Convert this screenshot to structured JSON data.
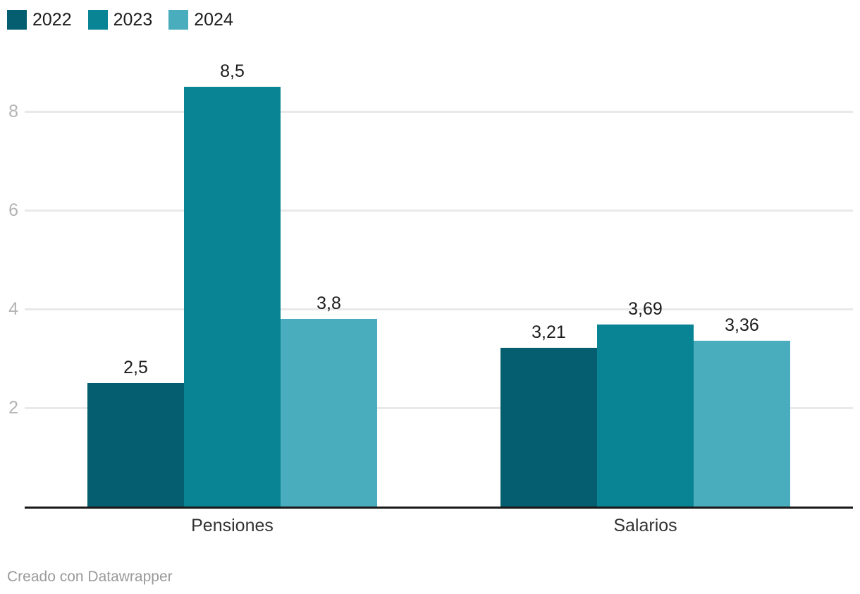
{
  "chart_data": {
    "type": "bar",
    "title": "",
    "categories": [
      "Pensiones",
      "Salarios"
    ],
    "series": [
      {
        "name": "2022",
        "color": "#055e70",
        "values": [
          2.5,
          3.21
        ],
        "value_labels": [
          "2,5",
          "3,21"
        ]
      },
      {
        "name": "2023",
        "color": "#088494",
        "values": [
          8.5,
          3.69
        ],
        "value_labels": [
          "8,5",
          "3,69"
        ]
      },
      {
        "name": "2024",
        "color": "#4aadbd",
        "values": [
          3.8,
          3.36
        ],
        "value_labels": [
          "3,8",
          "3,36"
        ]
      }
    ],
    "xlabel": "",
    "ylabel": "",
    "yticks": [
      2,
      4,
      6,
      8
    ],
    "ytick_labels": [
      "2",
      "4",
      "6",
      "8"
    ],
    "ylim": [
      0,
      9
    ],
    "grid": true,
    "legend_position": "top-left",
    "colors": {
      "gridline": "#e9e9e9",
      "axis_line": "#1a1a1a",
      "tick_label": "#b3b3b3",
      "value_label": "#1d1d1d",
      "category_label": "#333333"
    }
  },
  "footer": {
    "attribution": "Creado con Datawrapper"
  }
}
